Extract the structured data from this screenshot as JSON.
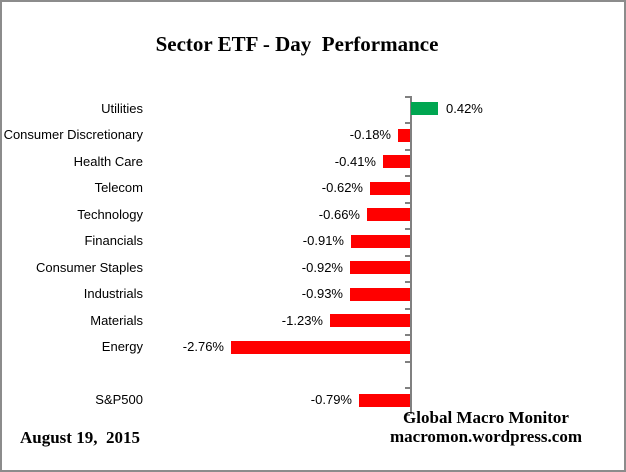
{
  "chart_data": {
    "type": "bar",
    "orientation": "horizontal",
    "title": "Sector ETF - Day  Performance",
    "categories": [
      "Utilities",
      "Consumer Discretionary",
      "Health Care",
      "Telecom",
      "Technology",
      "Financials",
      "Consumer Staples",
      "Industrials",
      "Materials",
      "Energy",
      "",
      "S&P500"
    ],
    "values": [
      0.42,
      -0.18,
      -0.41,
      -0.62,
      -0.66,
      -0.91,
      -0.92,
      -0.93,
      -1.23,
      -2.76,
      null,
      -0.79
    ],
    "value_labels": [
      "0.42%",
      "-0.18%",
      "-0.41%",
      "-0.62%",
      "-0.66%",
      "-0.91%",
      "-0.92%",
      "-0.93%",
      "-1.23%",
      "-2.76%",
      "",
      "-0.79%"
    ],
    "unit": "%",
    "baseline": 0,
    "gridlines": false,
    "legend": "none",
    "value_label_position": "outside-end",
    "positive_color": "#00A651",
    "negative_color": "#FF0000",
    "axis_color": "#808080"
  },
  "footer": {
    "date": "August 19,  2015",
    "source_line1": "Global Macro Monitor",
    "source_line2": "macromon.wordpress.com"
  }
}
